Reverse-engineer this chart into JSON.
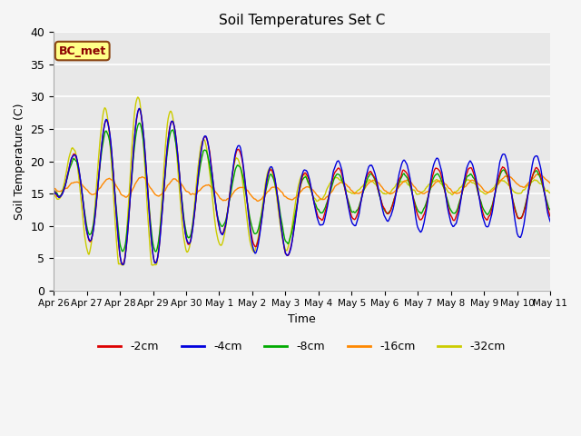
{
  "title": "Soil Temperatures Set C",
  "xlabel": "Time",
  "ylabel": "Soil Temperature (C)",
  "ylim": [
    0,
    40
  ],
  "annotation": "BC_met",
  "series_labels": [
    "-2cm",
    "-4cm",
    "-8cm",
    "-16cm",
    "-32cm"
  ],
  "series_colors": [
    "#dd0000",
    "#0000dd",
    "#00aa00",
    "#ff8800",
    "#cccc00"
  ],
  "bg_color": "#e8e8e8",
  "fig_bg": "#f5f5f5",
  "x_tick_labels": [
    "Apr 26",
    "Apr 27",
    "Apr 28",
    "Apr 29",
    "Apr 30",
    "May 1",
    "May 2",
    "May 3",
    "May 4",
    "May 5",
    "May 6",
    "May 7",
    "May 8",
    "May 9",
    "May 10",
    "May 11"
  ],
  "yticks": [
    0,
    5,
    10,
    15,
    20,
    25,
    30,
    35,
    40
  ]
}
